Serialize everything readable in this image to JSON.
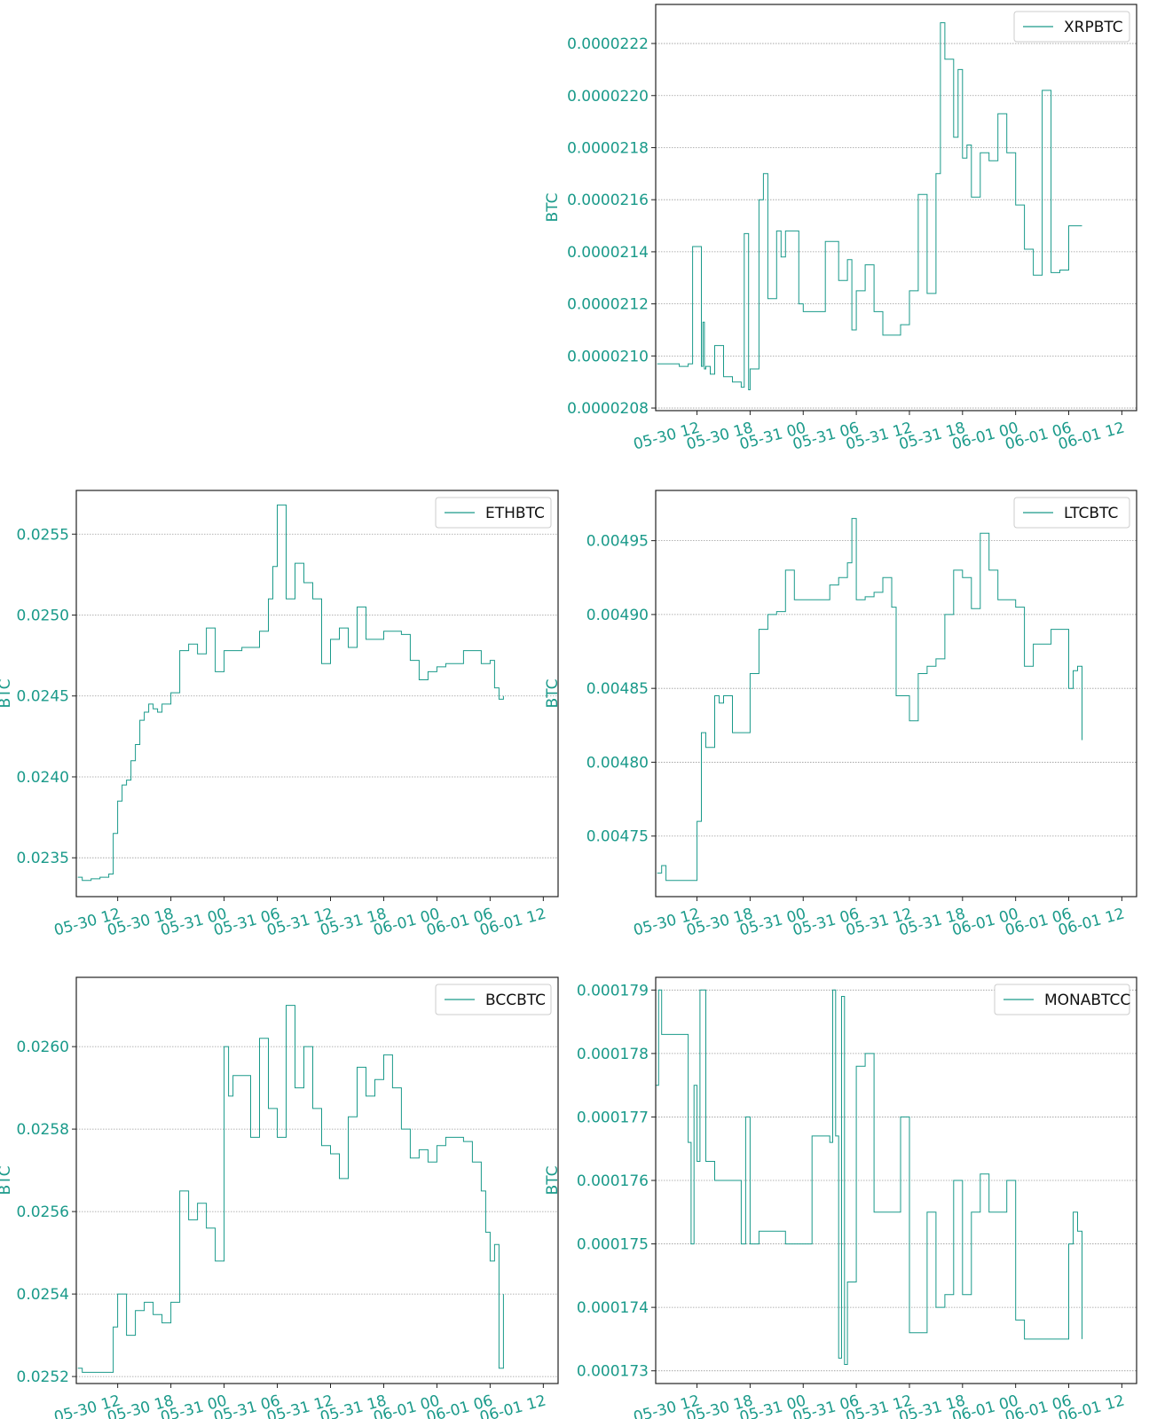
{
  "theme": {
    "accent": "#1a9a8a",
    "frame": "#222222",
    "grid": "#9a9a9a",
    "legend_text": "#111111"
  },
  "chart_data": [
    {
      "type": "line",
      "panel": "top-right",
      "title": "",
      "xlabel": "",
      "ylabel": "BTC",
      "legend": {
        "placement": "top-right",
        "entries": [
          "XRPBTC"
        ]
      },
      "grid": {
        "x": false,
        "y": true
      },
      "x_ticks": [
        "05-30 12",
        "05-30 18",
        "05-31 00",
        "05-31 06",
        "05-31 12",
        "05-31 18",
        "06-01 00",
        "06-01 06",
        "06-01 12"
      ],
      "y_ticks": [
        "0.0000208",
        "0.0000210",
        "0.0000212",
        "0.0000214",
        "0.0000216",
        "0.0000218",
        "0.0000220",
        "0.0000222"
      ],
      "xlim": [
        "05-30 07:20",
        "06-01 13:40"
      ],
      "ylim": [
        2.079e-05,
        2.235e-05
      ],
      "series": [
        {
          "name": "XRPBTC",
          "x": [
            "05-30 07:30",
            "05-30 10:00",
            "05-30 11:00",
            "05-30 11:30",
            "05-30 12:30",
            "05-30 12:40",
            "05-30 12:50",
            "05-30 13:00",
            "05-30 13:30",
            "05-30 14:00",
            "05-30 15:00",
            "05-30 16:00",
            "05-30 17:00",
            "05-30 17:20",
            "05-30 17:50",
            "05-30 18:00",
            "05-30 19:00",
            "05-30 19:30",
            "05-30 20:00",
            "05-30 21:00",
            "05-30 21:30",
            "05-30 22:00",
            "05-30 23:30",
            "05-31 00:00",
            "05-31 01:00",
            "05-31 02:30",
            "05-31 04:00",
            "05-31 04:30",
            "05-31 05:00",
            "05-31 05:30",
            "05-31 06:00",
            "05-31 07:00",
            "05-31 08:00",
            "05-31 09:00",
            "05-31 09:30",
            "05-31 11:00",
            "05-31 12:00",
            "05-31 13:00",
            "05-31 14:00",
            "05-31 15:00",
            "05-31 15:30",
            "05-31 16:00",
            "05-31 17:00",
            "05-31 17:30",
            "05-31 18:00",
            "05-31 18:30",
            "05-31 19:00",
            "05-31 20:00",
            "05-31 21:00",
            "05-31 22:00",
            "05-31 23:00",
            "06-01 00:00",
            "06-01 01:00",
            "06-01 02:00",
            "06-01 03:00",
            "06-01 04:00",
            "06-01 05:00",
            "06-01 05:30",
            "06-01 06:00",
            "06-01 06:30",
            "06-01 07:00",
            "06-01 07:30"
          ],
          "values": [
            2.097e-05,
            2.096e-05,
            2.097e-05,
            2.142e-05,
            2.096e-05,
            2.113e-05,
            2.095e-05,
            2.096e-05,
            2.093e-05,
            2.104e-05,
            2.092e-05,
            2.09e-05,
            2.088e-05,
            2.147e-05,
            2.087e-05,
            2.095e-05,
            2.16e-05,
            2.17e-05,
            2.122e-05,
            2.148e-05,
            2.138e-05,
            2.148e-05,
            2.12e-05,
            2.117e-05,
            2.117e-05,
            2.144e-05,
            2.129e-05,
            2.129e-05,
            2.137e-05,
            2.11e-05,
            2.125e-05,
            2.135e-05,
            2.117e-05,
            2.108e-05,
            2.108e-05,
            2.112e-05,
            2.125e-05,
            2.162e-05,
            2.124e-05,
            2.17e-05,
            2.228e-05,
            2.214e-05,
            2.184e-05,
            2.21e-05,
            2.176e-05,
            2.181e-05,
            2.161e-05,
            2.178e-05,
            2.175e-05,
            2.193e-05,
            2.178e-05,
            2.158e-05,
            2.141e-05,
            2.131e-05,
            2.202e-05,
            2.132e-05,
            2.133e-05,
            2.133e-05,
            2.15e-05,
            2.15e-05,
            2.15e-05,
            2.15e-05
          ]
        }
      ]
    },
    {
      "type": "line",
      "panel": "middle-left",
      "title": "",
      "xlabel": "",
      "ylabel": "BTC",
      "legend": {
        "placement": "top-right",
        "entries": [
          "ETHBTC"
        ]
      },
      "grid": {
        "x": false,
        "y": true
      },
      "x_ticks": [
        "05-30 12",
        "05-30 18",
        "05-31 00",
        "05-31 06",
        "05-31 12",
        "05-31 18",
        "06-01 00",
        "06-01 06",
        "06-01 12"
      ],
      "y_ticks": [
        "0.0235",
        "0.0240",
        "0.0245",
        "0.0250",
        "0.0255"
      ],
      "xlim": [
        "05-30 07:20",
        "06-01 13:40"
      ],
      "ylim": [
        0.02326,
        0.02577
      ],
      "series": [
        {
          "name": "ETHBTC",
          "x": [
            "05-30 07:30",
            "05-30 08:00",
            "05-30 09:00",
            "05-30 10:00",
            "05-30 11:00",
            "05-30 11:30",
            "05-30 12:00",
            "05-30 12:30",
            "05-30 13:00",
            "05-30 13:30",
            "05-30 14:00",
            "05-30 14:30",
            "05-30 15:00",
            "05-30 15:30",
            "05-30 16:00",
            "05-30 16:30",
            "05-30 17:00",
            "05-30 18:00",
            "05-30 19:00",
            "05-30 20:00",
            "05-30 21:00",
            "05-30 22:00",
            "05-30 23:00",
            "05-31 00:00",
            "05-31 01:00",
            "05-31 02:00",
            "05-31 03:00",
            "05-31 04:00",
            "05-31 05:00",
            "05-31 05:30",
            "05-31 06:00",
            "05-31 07:00",
            "05-31 08:00",
            "05-31 09:00",
            "05-31 10:00",
            "05-31 11:00",
            "05-31 12:00",
            "05-31 13:00",
            "05-31 14:00",
            "05-31 15:00",
            "05-31 16:00",
            "05-31 18:00",
            "05-31 20:00",
            "05-31 21:00",
            "05-31 22:00",
            "05-31 23:00",
            "06-01 00:00",
            "06-01 01:00",
            "06-01 02:00",
            "06-01 03:00",
            "06-01 04:00",
            "06-01 05:00",
            "06-01 06:00",
            "06-01 06:30",
            "06-01 07:00",
            "06-01 07:30"
          ],
          "values": [
            0.02338,
            0.02336,
            0.02337,
            0.02338,
            0.0234,
            0.02365,
            0.02385,
            0.02395,
            0.02398,
            0.0241,
            0.0242,
            0.02435,
            0.0244,
            0.02445,
            0.02442,
            0.0244,
            0.02445,
            0.02452,
            0.02478,
            0.02482,
            0.02476,
            0.02492,
            0.02465,
            0.02478,
            0.02478,
            0.0248,
            0.0248,
            0.0249,
            0.0251,
            0.0253,
            0.02568,
            0.0251,
            0.02532,
            0.0252,
            0.0251,
            0.0247,
            0.02485,
            0.02492,
            0.0248,
            0.02505,
            0.02485,
            0.0249,
            0.02488,
            0.02472,
            0.0246,
            0.02465,
            0.02468,
            0.0247,
            0.0247,
            0.02478,
            0.02478,
            0.0247,
            0.02472,
            0.02455,
            0.02448,
            0.0245
          ]
        }
      ]
    },
    {
      "type": "line",
      "panel": "middle-right",
      "title": "",
      "xlabel": "",
      "ylabel": "BTC",
      "legend": {
        "placement": "top-right",
        "entries": [
          "LTCBTC"
        ]
      },
      "grid": {
        "x": false,
        "y": true
      },
      "x_ticks": [
        "05-30 12",
        "05-30 18",
        "05-31 00",
        "05-31 06",
        "05-31 12",
        "05-31 18",
        "06-01 00",
        "06-01 06",
        "06-01 12"
      ],
      "y_ticks": [
        "0.00475",
        "0.00480",
        "0.00485",
        "0.00490",
        "0.00495"
      ],
      "xlim": [
        "05-30 07:20",
        "06-01 13:40"
      ],
      "ylim": [
        0.004709,
        0.004984
      ],
      "series": [
        {
          "name": "LTCBTC",
          "x": [
            "05-30 07:30",
            "05-30 08:00",
            "05-30 08:30",
            "05-30 11:30",
            "05-30 12:00",
            "05-30 12:30",
            "05-30 13:00",
            "05-30 14:00",
            "05-30 14:30",
            "05-30 15:00",
            "05-30 16:00",
            "05-30 17:00",
            "05-30 18:00",
            "05-30 19:00",
            "05-30 20:00",
            "05-30 21:00",
            "05-30 22:00",
            "05-30 23:00",
            "05-31 00:00",
            "05-31 01:00",
            "05-31 02:00",
            "05-31 03:00",
            "05-31 04:00",
            "05-31 05:00",
            "05-31 05:30",
            "05-31 06:00",
            "05-31 07:00",
            "05-31 08:00",
            "05-31 09:00",
            "05-31 10:00",
            "05-31 10:30",
            "05-31 12:00",
            "05-31 13:00",
            "05-31 14:00",
            "05-31 15:00",
            "05-31 16:00",
            "05-31 17:00",
            "05-31 18:00",
            "05-31 19:00",
            "05-31 20:00",
            "05-31 21:00",
            "05-31 22:00",
            "06-01 00:00",
            "06-01 01:00",
            "06-01 02:00",
            "06-01 03:00",
            "06-01 04:00",
            "06-01 05:00",
            "06-01 05:30",
            "06-01 06:00",
            "06-01 06:30",
            "06-01 07:00",
            "06-01 07:30"
          ],
          "values": [
            0.004725,
            0.00473,
            0.00472,
            0.00472,
            0.00476,
            0.00482,
            0.00481,
            0.004845,
            0.00484,
            0.004845,
            0.00482,
            0.00482,
            0.00486,
            0.00489,
            0.0049,
            0.004902,
            0.00493,
            0.00491,
            0.00491,
            0.00491,
            0.00491,
            0.00492,
            0.004925,
            0.004935,
            0.004965,
            0.00491,
            0.004912,
            0.004915,
            0.004925,
            0.004905,
            0.004845,
            0.004828,
            0.00486,
            0.004865,
            0.00487,
            0.0049,
            0.00493,
            0.004925,
            0.004904,
            0.004955,
            0.00493,
            0.00491,
            0.004905,
            0.004865,
            0.00488,
            0.00488,
            0.00489,
            0.00489,
            0.00489,
            0.00485,
            0.004862,
            0.004865,
            0.004815
          ]
        }
      ]
    },
    {
      "type": "line",
      "panel": "bottom-left",
      "title": "",
      "xlabel": "",
      "ylabel": "BTC",
      "legend": {
        "placement": "top-right",
        "entries": [
          "BCCBTC"
        ]
      },
      "grid": {
        "x": false,
        "y": true
      },
      "x_ticks": [
        "05-30 12",
        "05-30 18",
        "05-31 00",
        "05-31 06",
        "05-31 12",
        "05-31 18",
        "06-01 00",
        "06-01 06",
        "06-01 12"
      ],
      "y_ticks": [
        "0.0252",
        "0.0254",
        "0.0256",
        "0.0258",
        "0.0260"
      ],
      "xlim": [
        "05-30 07:20",
        "06-01 13:40"
      ],
      "ylim": [
        0.025183,
        0.026168
      ],
      "series": [
        {
          "name": "BCCBTC",
          "x": [
            "05-30 07:30",
            "05-30 08:00",
            "05-30 09:00",
            "05-30 11:00",
            "05-30 11:30",
            "05-30 12:00",
            "05-30 13:00",
            "05-30 14:00",
            "05-30 15:00",
            "05-30 16:00",
            "05-30 17:00",
            "05-30 18:00",
            "05-30 19:00",
            "05-30 20:00",
            "05-30 21:00",
            "05-30 22:00",
            "05-30 23:00",
            "05-31 00:00",
            "05-31 00:30",
            "05-31 01:00",
            "05-31 02:00",
            "05-31 03:00",
            "05-31 04:00",
            "05-31 05:00",
            "05-31 06:00",
            "05-31 07:00",
            "05-31 08:00",
            "05-31 09:00",
            "05-31 10:00",
            "05-31 11:00",
            "05-31 12:00",
            "05-31 13:00",
            "05-31 14:00",
            "05-31 15:00",
            "05-31 16:00",
            "05-31 17:00",
            "05-31 18:00",
            "05-31 19:00",
            "05-31 20:00",
            "05-31 21:00",
            "05-31 22:00",
            "05-31 23:00",
            "06-01 00:00",
            "06-01 01:00",
            "06-01 02:00",
            "06-01 03:00",
            "06-01 04:00",
            "06-01 05:00",
            "06-01 05:30",
            "06-01 06:00",
            "06-01 06:30",
            "06-01 07:00",
            "06-01 07:30"
          ],
          "values": [
            0.02522,
            0.02521,
            0.02521,
            0.02521,
            0.02532,
            0.0254,
            0.0253,
            0.02536,
            0.02538,
            0.02535,
            0.02533,
            0.02538,
            0.02565,
            0.02558,
            0.02562,
            0.02556,
            0.02548,
            0.026,
            0.02588,
            0.02593,
            0.02593,
            0.02578,
            0.02602,
            0.02585,
            0.02578,
            0.0261,
            0.0259,
            0.026,
            0.02585,
            0.02576,
            0.02574,
            0.02568,
            0.02583,
            0.02595,
            0.02588,
            0.02592,
            0.02598,
            0.0259,
            0.0258,
            0.02573,
            0.02575,
            0.02572,
            0.02576,
            0.02578,
            0.02578,
            0.02577,
            0.02572,
            0.02565,
            0.02555,
            0.02548,
            0.02552,
            0.02522,
            0.0254
          ]
        }
      ]
    },
    {
      "type": "line",
      "panel": "bottom-right",
      "title": "",
      "xlabel": "",
      "ylabel": "BTC",
      "legend": {
        "placement": "top-right",
        "entries": [
          "MONABTCC"
        ]
      },
      "grid": {
        "x": false,
        "y": true
      },
      "x_ticks": [
        "05-30 12",
        "05-30 18",
        "05-31 00",
        "05-31 06",
        "05-31 12",
        "05-31 18",
        "06-01 00",
        "06-01 06",
        "06-01 12"
      ],
      "y_ticks": [
        "0.000173",
        "0.000174",
        "0.000175",
        "0.000176",
        "0.000177",
        "0.000178",
        "0.000179"
      ],
      "xlim": [
        "05-30 07:20",
        "06-01 13:40"
      ],
      "ylim": [
        0.0001728,
        0.0001792
      ],
      "series": [
        {
          "name": "MONABTCC",
          "x": [
            "05-30 07:20",
            "05-30 07:40",
            "05-30 08:00",
            "05-30 10:00",
            "05-30 11:00",
            "05-30 11:20",
            "05-30 11:40",
            "05-30 12:00",
            "05-30 12:20",
            "05-30 13:00",
            "05-30 14:00",
            "05-30 15:00",
            "05-30 16:00",
            "05-30 17:00",
            "05-30 17:30",
            "05-30 18:00",
            "05-30 19:00",
            "05-30 20:00",
            "05-30 22:00",
            "05-30 23:00",
            "05-31 00:00",
            "05-31 01:00",
            "05-31 02:00",
            "05-31 03:00",
            "05-31 03:20",
            "05-31 03:40",
            "05-31 04:00",
            "05-31 04:20",
            "05-31 04:40",
            "05-31 05:00",
            "05-31 06:00",
            "05-31 07:00",
            "05-31 08:00",
            "05-31 09:00",
            "05-31 10:00",
            "05-31 11:00",
            "05-31 12:00",
            "05-31 13:00",
            "05-31 14:00",
            "05-31 15:00",
            "05-31 16:00",
            "05-31 17:00",
            "05-31 18:00",
            "05-31 19:00",
            "05-31 20:00",
            "05-31 21:00",
            "05-31 22:00",
            "05-31 23:00",
            "06-01 00:00",
            "06-01 01:00",
            "06-01 02:00",
            "06-01 03:00",
            "06-01 04:00",
            "06-01 05:00",
            "06-01 06:00",
            "06-01 06:30",
            "06-01 07:00",
            "06-01 07:30"
          ],
          "values": [
            0.0001775,
            0.000179,
            0.0001783,
            0.0001783,
            0.0001766,
            0.000175,
            0.0001775,
            0.0001763,
            0.000179,
            0.0001763,
            0.000176,
            0.000176,
            0.000176,
            0.000175,
            0.000177,
            0.000175,
            0.0001752,
            0.0001752,
            0.000175,
            0.000175,
            0.000175,
            0.0001767,
            0.0001767,
            0.0001766,
            0.000179,
            0.0001767,
            0.0001732,
            0.0001789,
            0.0001731,
            0.0001744,
            0.0001778,
            0.000178,
            0.0001755,
            0.0001755,
            0.0001755,
            0.000177,
            0.0001736,
            0.0001736,
            0.0001755,
            0.000174,
            0.0001742,
            0.000176,
            0.0001742,
            0.0001755,
            0.0001761,
            0.0001755,
            0.0001755,
            0.000176,
            0.0001738,
            0.0001735,
            0.0001735,
            0.0001735,
            0.0001735,
            0.0001735,
            0.000175,
            0.0001755,
            0.0001752,
            0.0001735
          ]
        }
      ]
    }
  ]
}
